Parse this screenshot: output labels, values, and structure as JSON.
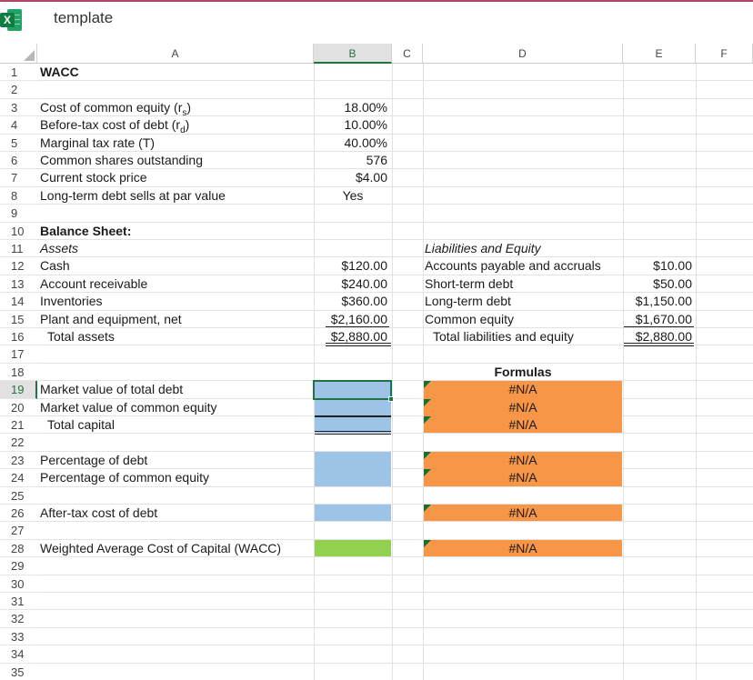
{
  "app": {
    "title": "template",
    "icon": "excel-icon",
    "icon_letter": "X"
  },
  "columns": [
    "A",
    "B",
    "C",
    "D",
    "E",
    "F"
  ],
  "rows": [
    "1",
    "2",
    "3",
    "4",
    "5",
    "6",
    "7",
    "8",
    "9",
    "10",
    "11",
    "12",
    "13",
    "14",
    "15",
    "16",
    "17",
    "18",
    "19",
    "20",
    "21",
    "22",
    "23",
    "24",
    "25",
    "26",
    "27",
    "28",
    "29",
    "30",
    "31",
    "32",
    "33",
    "34",
    "35"
  ],
  "inputs": {
    "title": "WACC",
    "labels": [
      "Cost of common equity (r",
      "Before-tax cost of debt (r",
      "Marginal tax rate (T)",
      "Common shares outstanding",
      "Current stock price",
      "Long-term debt sells at par value"
    ],
    "subscripts": [
      "s",
      "d"
    ],
    "values": [
      "18.00%",
      "10.00%",
      "40.00%",
      "576",
      "$4.00",
      "Yes"
    ]
  },
  "balance_sheet": {
    "title": "Balance Sheet:",
    "assets_heading": "Assets",
    "asset_labels": [
      "Cash",
      "Account receivable",
      "Inventories",
      "Plant and equipment, net",
      "Total assets"
    ],
    "asset_values": [
      "$120.00",
      "$240.00",
      "$360.00",
      "$2,160.00",
      "$2,880.00"
    ],
    "liab_heading": "Liabilities and Equity",
    "liab_labels": [
      "Accounts payable and accruals",
      "Short-term debt",
      "Long-term debt",
      "Common equity",
      "Total liabilities and equity"
    ],
    "liab_values": [
      "$10.00",
      "$50.00",
      "$1,150.00",
      "$1,670.00",
      "$2,880.00"
    ]
  },
  "calc": {
    "formulas_heading": "Formulas",
    "labels": [
      "Market value of total debt",
      "Market value of common equity",
      "Total capital",
      "Percentage of debt",
      "Percentage of common equity",
      "After-tax cost of debt",
      "Weighted Average Cost of Capital (WACC)"
    ],
    "formula_results": [
      "#N/A",
      "#N/A",
      "#N/A",
      "#N/A",
      "#N/A",
      "#N/A",
      "#N/A"
    ]
  },
  "colors": {
    "input_fill": "#9dc3e6",
    "result_fill": "#92d050",
    "formula_fill": "#f79646",
    "selection": "#217346",
    "header_accent": "#b0466a"
  }
}
